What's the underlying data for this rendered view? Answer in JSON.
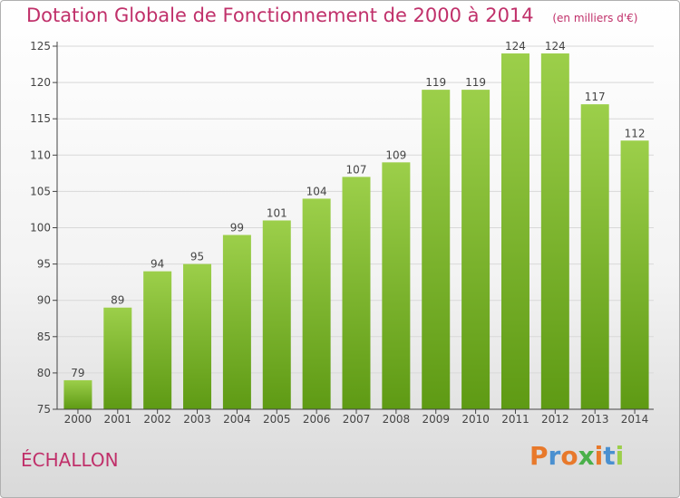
{
  "chart_data": {
    "type": "bar",
    "title": "Dotation Globale de Fonctionnement de 2000 à 2014",
    "subtitle": "(en milliers d'€)",
    "categories": [
      "2000",
      "2001",
      "2002",
      "2003",
      "2004",
      "2005",
      "2006",
      "2007",
      "2008",
      "2009",
      "2010",
      "2011",
      "2012",
      "2013",
      "2014"
    ],
    "values": [
      79,
      89,
      94,
      95,
      99,
      101,
      104,
      107,
      109,
      119,
      119,
      124,
      124,
      117,
      112
    ],
    "ylim": [
      75,
      125
    ],
    "yticks": [
      75,
      80,
      85,
      90,
      95,
      100,
      105,
      110,
      115,
      120,
      125
    ],
    "grid": true,
    "bar_color_top": "#9ccf4a",
    "bar_color_bottom": "#5e9a14"
  },
  "place_name": "ÉCHALLON",
  "logo": {
    "text": "Proxiti",
    "colors": [
      "#e8792b",
      "#4a90d0",
      "#e8792b",
      "#4ab04a",
      "#e8792b",
      "#4a90d0",
      "#9ccf4a"
    ]
  },
  "colors": {
    "title": "#c0306a",
    "axis": "#444444",
    "grid": "#d8d8d8"
  }
}
